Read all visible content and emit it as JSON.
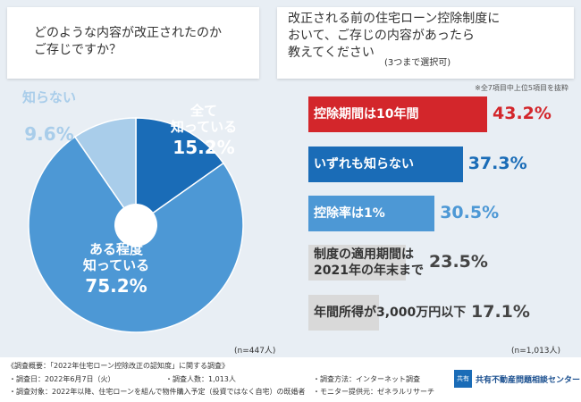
{
  "chart_data": [
    {
      "type": "pie",
      "title": "どのような内容が改正されたのか\nご存じですか？",
      "categories": [
        "全て\n知っている",
        "ある程度\n知っている",
        "知らない"
      ],
      "values": [
        15.2,
        75.2,
        9.6
      ],
      "value_labels": [
        "15.2%",
        "75.2%",
        "9.6%"
      ],
      "colors": [
        "#1a6cb7",
        "#4d98d5",
        "#a9cdea"
      ],
      "note": "(n=447人)"
    },
    {
      "type": "bar",
      "title": "改正される前の住宅ローン控除制度に\nおいて、ご存じの内容があったら\n教えてください",
      "subtitle": "(3つまで選択可)",
      "annotation": "※全7項目中上位5項目を抜粋",
      "categories": [
        "控除期間は10年間",
        "いずれも知らない",
        "控除率は1%",
        "制度の適用期間は\n2021年の年末まで",
        "年間所得が3,000万円以下"
      ],
      "values": [
        43.2,
        37.3,
        30.5,
        23.5,
        17.1
      ],
      "value_labels": [
        "43.2%",
        "37.3%",
        "30.5%",
        "23.5%",
        "17.1%"
      ],
      "colors": [
        "#d3262b",
        "#1a6cb7",
        "#4d98d5",
        "#d9d9d9",
        "#d9d9d9"
      ],
      "value_colors": [
        "#d3262b",
        "#1a6cb7",
        "#4d98d5",
        "#444444",
        "#444444"
      ],
      "text_colors": [
        "#ffffff",
        "#ffffff",
        "#ffffff",
        "#333333",
        "#333333"
      ],
      "note": "(n=1,013人)"
    }
  ],
  "survey": {
    "heading": "《調査概要：「2022年住宅ローン控除改正の認知度」に関する調査》",
    "items": [
      "・調査日：2022年6月7日（火）",
      "・調査人数：1,013人",
      "・調査方法：インターネット調査",
      "・調査対象：2022年以降、住宅ローンを組んで物件購入予定（投資ではなく自宅）の既婚者",
      "・モニター提供元：ゼネラルリサーチ"
    ]
  },
  "logo": {
    "tag": "共有",
    "name": "共有不動産問題相談センター"
  }
}
